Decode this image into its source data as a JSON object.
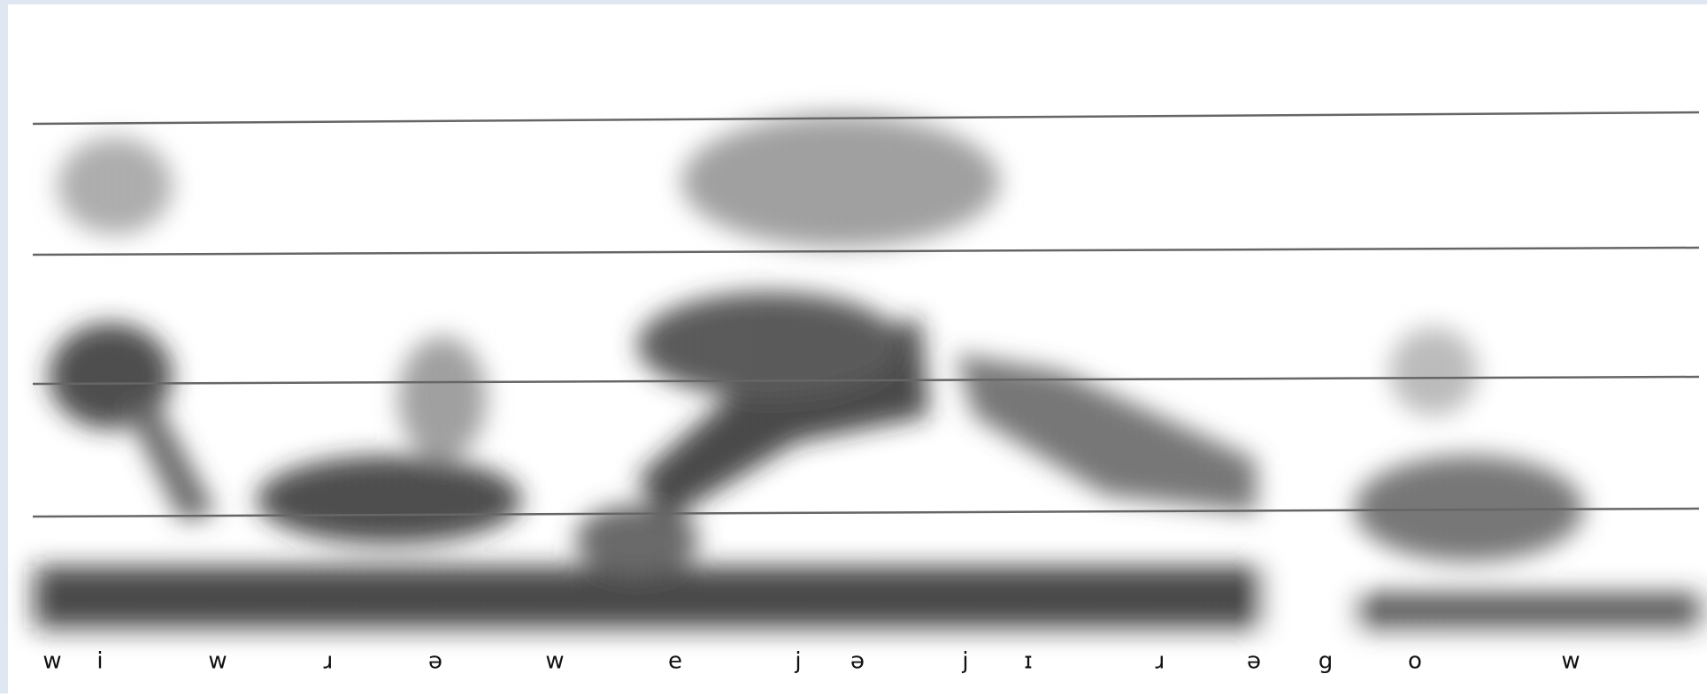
{
  "phonemes": [
    "w",
    "i",
    "w",
    "ɹ",
    "ə",
    "w",
    "e",
    "j",
    "ə",
    "j",
    "ɪ",
    "ɹ",
    "ə",
    "g",
    "o",
    "w"
  ]
}
